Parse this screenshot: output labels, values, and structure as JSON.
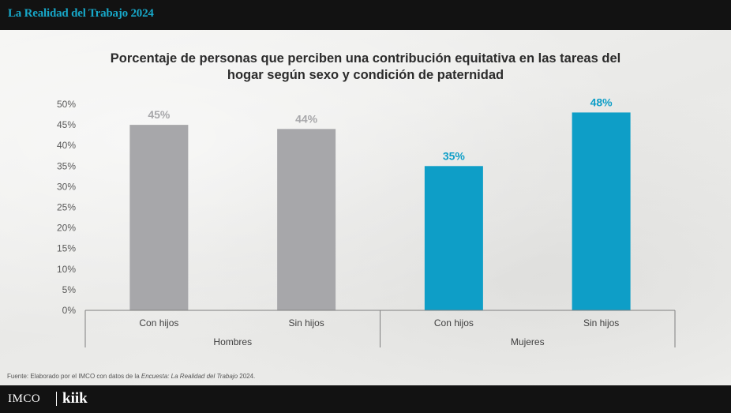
{
  "header": {
    "series_title": "La Realidad del Trabajo 2024"
  },
  "chart_data": {
    "type": "bar",
    "title_line1": "Porcentaje de personas que perciben una contribución equitativa en las tareas del",
    "title_line2": "hogar según sexo y condición de paternidad",
    "categories": [
      "Con hijos",
      "Sin hijos",
      "Con hijos",
      "Sin hijos"
    ],
    "groups": [
      {
        "name": "Hombres",
        "categories": [
          0,
          1
        ]
      },
      {
        "name": "Mujeres",
        "categories": [
          2,
          3
        ]
      }
    ],
    "values": [
      45,
      44,
      35,
      48
    ],
    "value_labels": [
      "45%",
      "44%",
      "35%",
      "48%"
    ],
    "bar_colors": [
      "#a7a7aa",
      "#a7a7aa",
      "#0e9ec7",
      "#0e9ec7"
    ],
    "label_colors": [
      "#a7a7aa",
      "#a7a7aa",
      "#0e9ec7",
      "#0e9ec7"
    ],
    "ylim": [
      0,
      50
    ],
    "yticks": [
      0,
      5,
      10,
      15,
      20,
      25,
      30,
      35,
      40,
      45,
      50
    ],
    "ytick_labels": [
      "0%",
      "5%",
      "10%",
      "15%",
      "20%",
      "25%",
      "30%",
      "35%",
      "40%",
      "45%",
      "50%"
    ],
    "grid": false,
    "xlabel": "",
    "ylabel": ""
  },
  "footer": {
    "source_prefix": "Fuente: Elaborado por el IMCO con datos de la ",
    "source_italic": "Encuesta: La Realidad del Trabajo",
    "source_suffix": " 2024.",
    "logo_imco": "IMCO",
    "logo_kiik": "kiik"
  }
}
